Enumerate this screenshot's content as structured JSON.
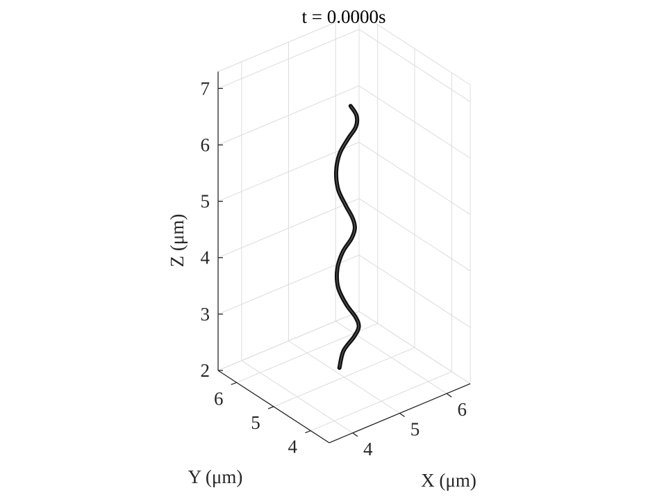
{
  "chart_data": {
    "type": "line",
    "title": "t = 0.0000s",
    "xlabel": "X (μm)",
    "ylabel": "Y (μm)",
    "zlabel": "Z (μm)",
    "xlim": [
      3.5,
      6.5
    ],
    "ylim": [
      3.5,
      6.5
    ],
    "zlim": [
      2,
      7.3
    ],
    "xticks": [
      4,
      5,
      6
    ],
    "yticks": [
      4,
      5,
      6
    ],
    "zticks": [
      2,
      3,
      4,
      5,
      6,
      7
    ],
    "xtick_labels": [
      "4",
      "5",
      "6"
    ],
    "ytick_labels": [
      "4",
      "5",
      "6"
    ],
    "ztick_labels": [
      "2",
      "3",
      "4",
      "5",
      "6",
      "7"
    ],
    "grid": true,
    "view": "3d",
    "series": [
      {
        "color": "#111111",
        "x": [
          4.9,
          5.01,
          5.15,
          5.13,
          5.0,
          4.85,
          4.8,
          4.87,
          5.0,
          5.1,
          5.07,
          4.96,
          4.84,
          4.78,
          4.83,
          4.95,
          5.07,
          5.14,
          5.09,
          4.98
        ],
        "y": [
          5.0,
          5.03,
          4.92,
          4.77,
          4.7,
          4.76,
          4.91,
          5.02,
          5.04,
          4.93,
          4.8,
          4.72,
          4.75,
          4.88,
          5.0,
          5.06,
          4.99,
          4.86,
          4.78,
          4.8
        ],
        "z": [
          2.2,
          2.45,
          2.7,
          2.95,
          3.2,
          3.45,
          3.7,
          3.95,
          4.2,
          4.45,
          4.7,
          4.95,
          5.2,
          5.45,
          5.7,
          5.95,
          6.2,
          6.45,
          6.7,
          6.9
        ]
      }
    ]
  }
}
